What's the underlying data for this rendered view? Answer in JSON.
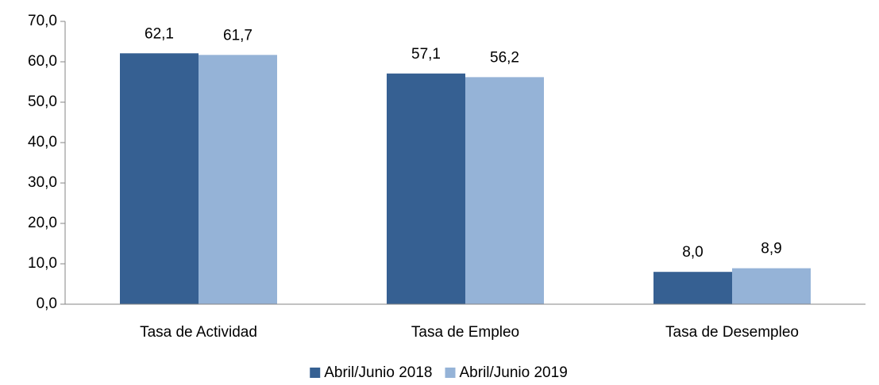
{
  "chart_data": {
    "type": "bar",
    "categories": [
      "Tasa de Actividad",
      "Tasa de Empleo",
      "Tasa de Desempleo"
    ],
    "series": [
      {
        "name": "Abril/Junio 2018",
        "color": "#366092",
        "values": [
          62.1,
          57.1,
          8.0
        ],
        "value_labels": [
          "62,1",
          "57,1",
          "8,0"
        ]
      },
      {
        "name": "Abril/Junio 2019",
        "color": "#95b3d7",
        "values": [
          61.7,
          56.2,
          8.9
        ],
        "value_labels": [
          "61,7",
          "56,2",
          "8,9"
        ]
      }
    ],
    "ylim": [
      0,
      70
    ],
    "yticks": [
      {
        "value": 0,
        "label": "0,0"
      },
      {
        "value": 10,
        "label": "10,0"
      },
      {
        "value": 20,
        "label": "20,0"
      },
      {
        "value": 30,
        "label": "30,0"
      },
      {
        "value": 40,
        "label": "40,0"
      },
      {
        "value": 50,
        "label": "50,0"
      },
      {
        "value": 60,
        "label": "60,0"
      },
      {
        "value": 70,
        "label": "70,0"
      }
    ],
    "grid": false,
    "legend": "bottom"
  }
}
